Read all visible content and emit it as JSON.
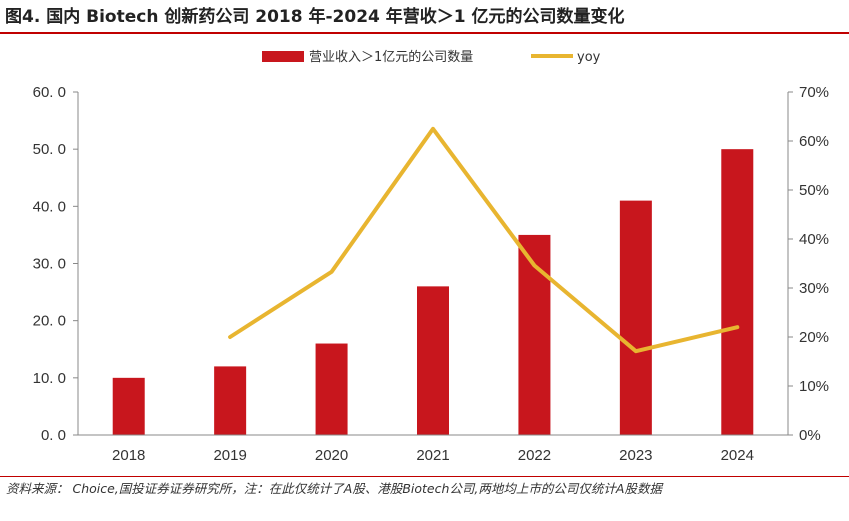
{
  "figure_title": "图4. 国内 Biotech 创新药公司 2018 年-2024 年营收＞1 亿元的公司数量变化",
  "source_note": "资料来源：  Choice,国投证券证券研究所，注：在此仅统计了A股、港股Biotech公司,两地均上市的公司仅统计A股数据",
  "colors": {
    "bar": "#c8161d",
    "line": "#e8b530",
    "axis": "#888888",
    "rule": "#c00000"
  },
  "chart_data": {
    "type": "bar",
    "categories": [
      "2018",
      "2019",
      "2020",
      "2021",
      "2022",
      "2023",
      "2024"
    ],
    "series": [
      {
        "name": "营业收入＞1亿元的公司数量",
        "type": "bar",
        "axis": "left",
        "values": [
          10,
          12,
          16,
          26,
          35,
          41,
          50
        ]
      },
      {
        "name": "yoy",
        "type": "line",
        "axis": "right",
        "values": [
          null,
          20,
          33.3,
          62.5,
          34.6,
          17.1,
          22
        ]
      }
    ],
    "y_left": {
      "min": 0,
      "max": 60,
      "step": 10,
      "tick_labels": [
        "0. 0",
        "10. 0",
        "20. 0",
        "30. 0",
        "40. 0",
        "50. 0",
        "60. 0"
      ]
    },
    "y_right": {
      "min": 0,
      "max": 70,
      "step": 10,
      "tick_labels": [
        "0%",
        "10%",
        "20%",
        "30%",
        "40%",
        "50%",
        "60%",
        "70%"
      ]
    },
    "legend_position": "top-center",
    "grid": false
  }
}
